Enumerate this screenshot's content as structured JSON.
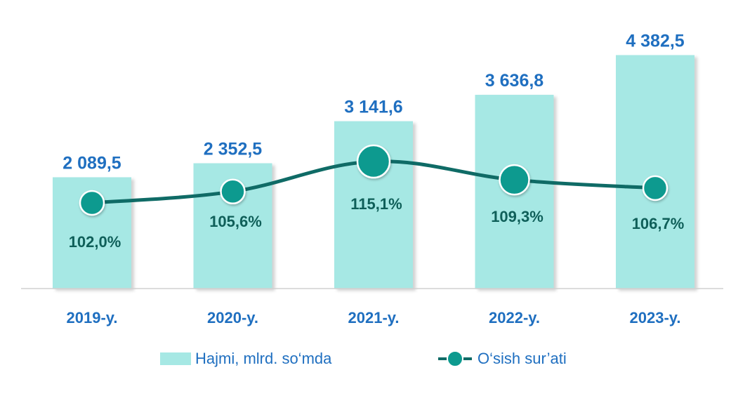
{
  "chart_data": {
    "type": "bar",
    "categories": [
      "2019-y.",
      "2020-y.",
      "2021-y.",
      "2022-y.",
      "2023-y."
    ],
    "series": [
      {
        "name": "Hajmi, mlrd. so‘mda",
        "type": "bar",
        "values": [
          2089.5,
          2352.5,
          3141.6,
          3636.8,
          4382.5
        ],
        "labels": [
          "2 089,5",
          "2 352,5",
          "3 141,6",
          "3 636,8",
          "4 382,5"
        ]
      },
      {
        "name": "O‘sish sur’ati",
        "type": "line",
        "values": [
          102.0,
          105.6,
          115.1,
          109.3,
          106.7
        ],
        "labels": [
          "102,0%",
          "105,6%",
          "115,1%",
          "109,3%",
          "106,7%"
        ]
      }
    ],
    "grid": false,
    "legend_position": "bottom"
  },
  "colors": {
    "bar": "#a6e8e4",
    "line": "#0f6b66",
    "marker": "#0d9a8f",
    "value_label": "#1f6fc0",
    "percent_label": "#0f5f59",
    "axis": "#d0d0d0"
  }
}
